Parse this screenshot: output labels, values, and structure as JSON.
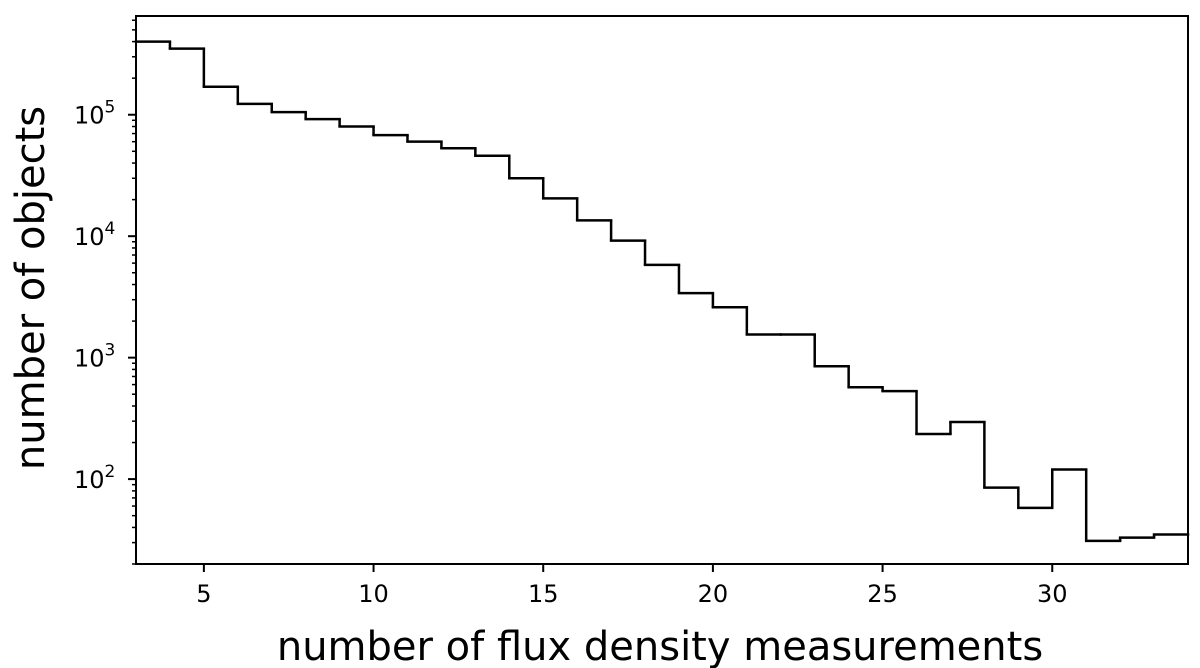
{
  "chart_data": {
    "type": "histogram",
    "xlabel": "number of flux density measurements",
    "ylabel": "number of objects",
    "xlim": [
      3,
      34
    ],
    "ylim": [
      20,
      650000
    ],
    "yscale": "log",
    "grid": false,
    "line_color": "#000000",
    "x_ticks": [
      5,
      10,
      15,
      20,
      25,
      30
    ],
    "y_ticks": [
      {
        "value": 100,
        "base": "10",
        "exp": "2"
      },
      {
        "value": 1000,
        "base": "10",
        "exp": "3"
      },
      {
        "value": 10000,
        "base": "10",
        "exp": "4"
      },
      {
        "value": 100000,
        "base": "10",
        "exp": "5"
      }
    ],
    "bins": [
      {
        "x0": 3,
        "x1": 4,
        "value": 400000
      },
      {
        "x0": 4,
        "x1": 5,
        "value": 350000
      },
      {
        "x0": 5,
        "x1": 6,
        "value": 170000
      },
      {
        "x0": 6,
        "x1": 7,
        "value": 123000
      },
      {
        "x0": 7,
        "x1": 8,
        "value": 105000
      },
      {
        "x0": 8,
        "x1": 9,
        "value": 92000
      },
      {
        "x0": 9,
        "x1": 10,
        "value": 80000
      },
      {
        "x0": 10,
        "x1": 11,
        "value": 68000
      },
      {
        "x0": 11,
        "x1": 12,
        "value": 60000
      },
      {
        "x0": 12,
        "x1": 13,
        "value": 53000
      },
      {
        "x0": 13,
        "x1": 14,
        "value": 46000
      },
      {
        "x0": 14,
        "x1": 15,
        "value": 30000
      },
      {
        "x0": 15,
        "x1": 16,
        "value": 20500
      },
      {
        "x0": 16,
        "x1": 17,
        "value": 13500
      },
      {
        "x0": 17,
        "x1": 18,
        "value": 9200
      },
      {
        "x0": 18,
        "x1": 19,
        "value": 5800
      },
      {
        "x0": 19,
        "x1": 20,
        "value": 3400
      },
      {
        "x0": 20,
        "x1": 21,
        "value": 2600
      },
      {
        "x0": 21,
        "x1": 22,
        "value": 1550
      },
      {
        "x0": 22,
        "x1": 23,
        "value": 1550
      },
      {
        "x0": 23,
        "x1": 24,
        "value": 850
      },
      {
        "x0": 24,
        "x1": 25,
        "value": 570
      },
      {
        "x0": 25,
        "x1": 26,
        "value": 530
      },
      {
        "x0": 26,
        "x1": 27,
        "value": 235
      },
      {
        "x0": 27,
        "x1": 28,
        "value": 295
      },
      {
        "x0": 28,
        "x1": 29,
        "value": 85
      },
      {
        "x0": 29,
        "x1": 30,
        "value": 58
      },
      {
        "x0": 30,
        "x1": 31,
        "value": 120
      },
      {
        "x0": 31,
        "x1": 32,
        "value": 31
      },
      {
        "x0": 32,
        "x1": 33,
        "value": 33
      },
      {
        "x0": 33,
        "x1": 34,
        "value": 35
      }
    ]
  }
}
